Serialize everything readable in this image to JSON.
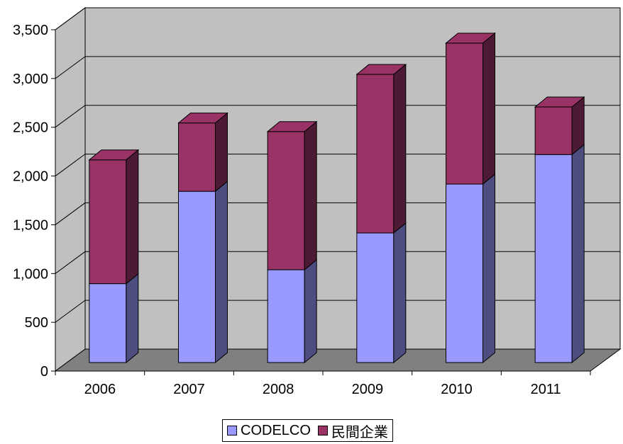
{
  "chart_data": {
    "type": "bar",
    "stacked": true,
    "style": "3d",
    "categories": [
      "2006",
      "2007",
      "2008",
      "2009",
      "2010",
      "2011"
    ],
    "series": [
      {
        "name": "CODELCO",
        "values": [
          809,
          1756,
          952,
          1329,
          1830,
          2133
        ],
        "color": "#9999ff"
      },
      {
        "name": "民間企業",
        "values": [
          1270,
          701,
          1417,
          1626,
          1446,
          488
        ],
        "color": "#993366"
      }
    ],
    "ylim": [
      0,
      3500
    ],
    "yticks": [
      "0",
      "500",
      "1,000",
      "1,500",
      "2,000",
      "2,500",
      "3,000",
      "3,500"
    ],
    "grid": true,
    "legend_position": "bottom",
    "colors": {
      "back_wall": "#c0c0c0",
      "floor": "#808080",
      "grid": "#000000"
    }
  }
}
